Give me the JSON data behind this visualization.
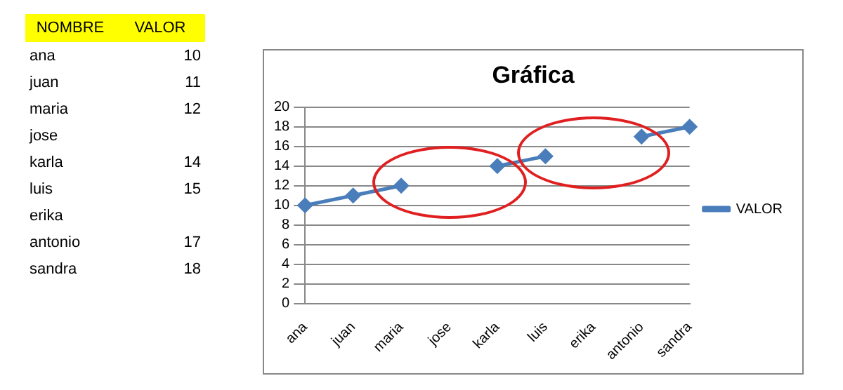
{
  "chart_data": [
    {
      "type": "other",
      "xlabel": "NOMBRE",
      "ylabel": "VALOR",
      "categories": [
        "ana",
        "juan",
        "maria",
        "jose",
        "karla",
        "luis",
        "erika",
        "antonio",
        "sandra"
      ],
      "values": [
        10,
        11,
        12,
        null,
        14,
        15,
        null,
        17,
        18
      ],
      "data_labels": true
    },
    {
      "type": "line",
      "title": "Gráfica",
      "categories": [
        "ana",
        "juan",
        "maria",
        "jose",
        "karla",
        "luis",
        "erika",
        "antonio",
        "sandra"
      ],
      "series": [
        {
          "name": "VALOR",
          "color": "#4a7ebb",
          "values": [
            10,
            11,
            12,
            null,
            14,
            15,
            null,
            17,
            18
          ]
        }
      ],
      "ylim": [
        0,
        20
      ],
      "yticks": [
        0,
        2,
        4,
        6,
        8,
        10,
        12,
        14,
        16,
        18,
        20
      ],
      "grid": "y",
      "legend": "right",
      "marker": "diamond",
      "line_style": "solid"
    }
  ]
}
